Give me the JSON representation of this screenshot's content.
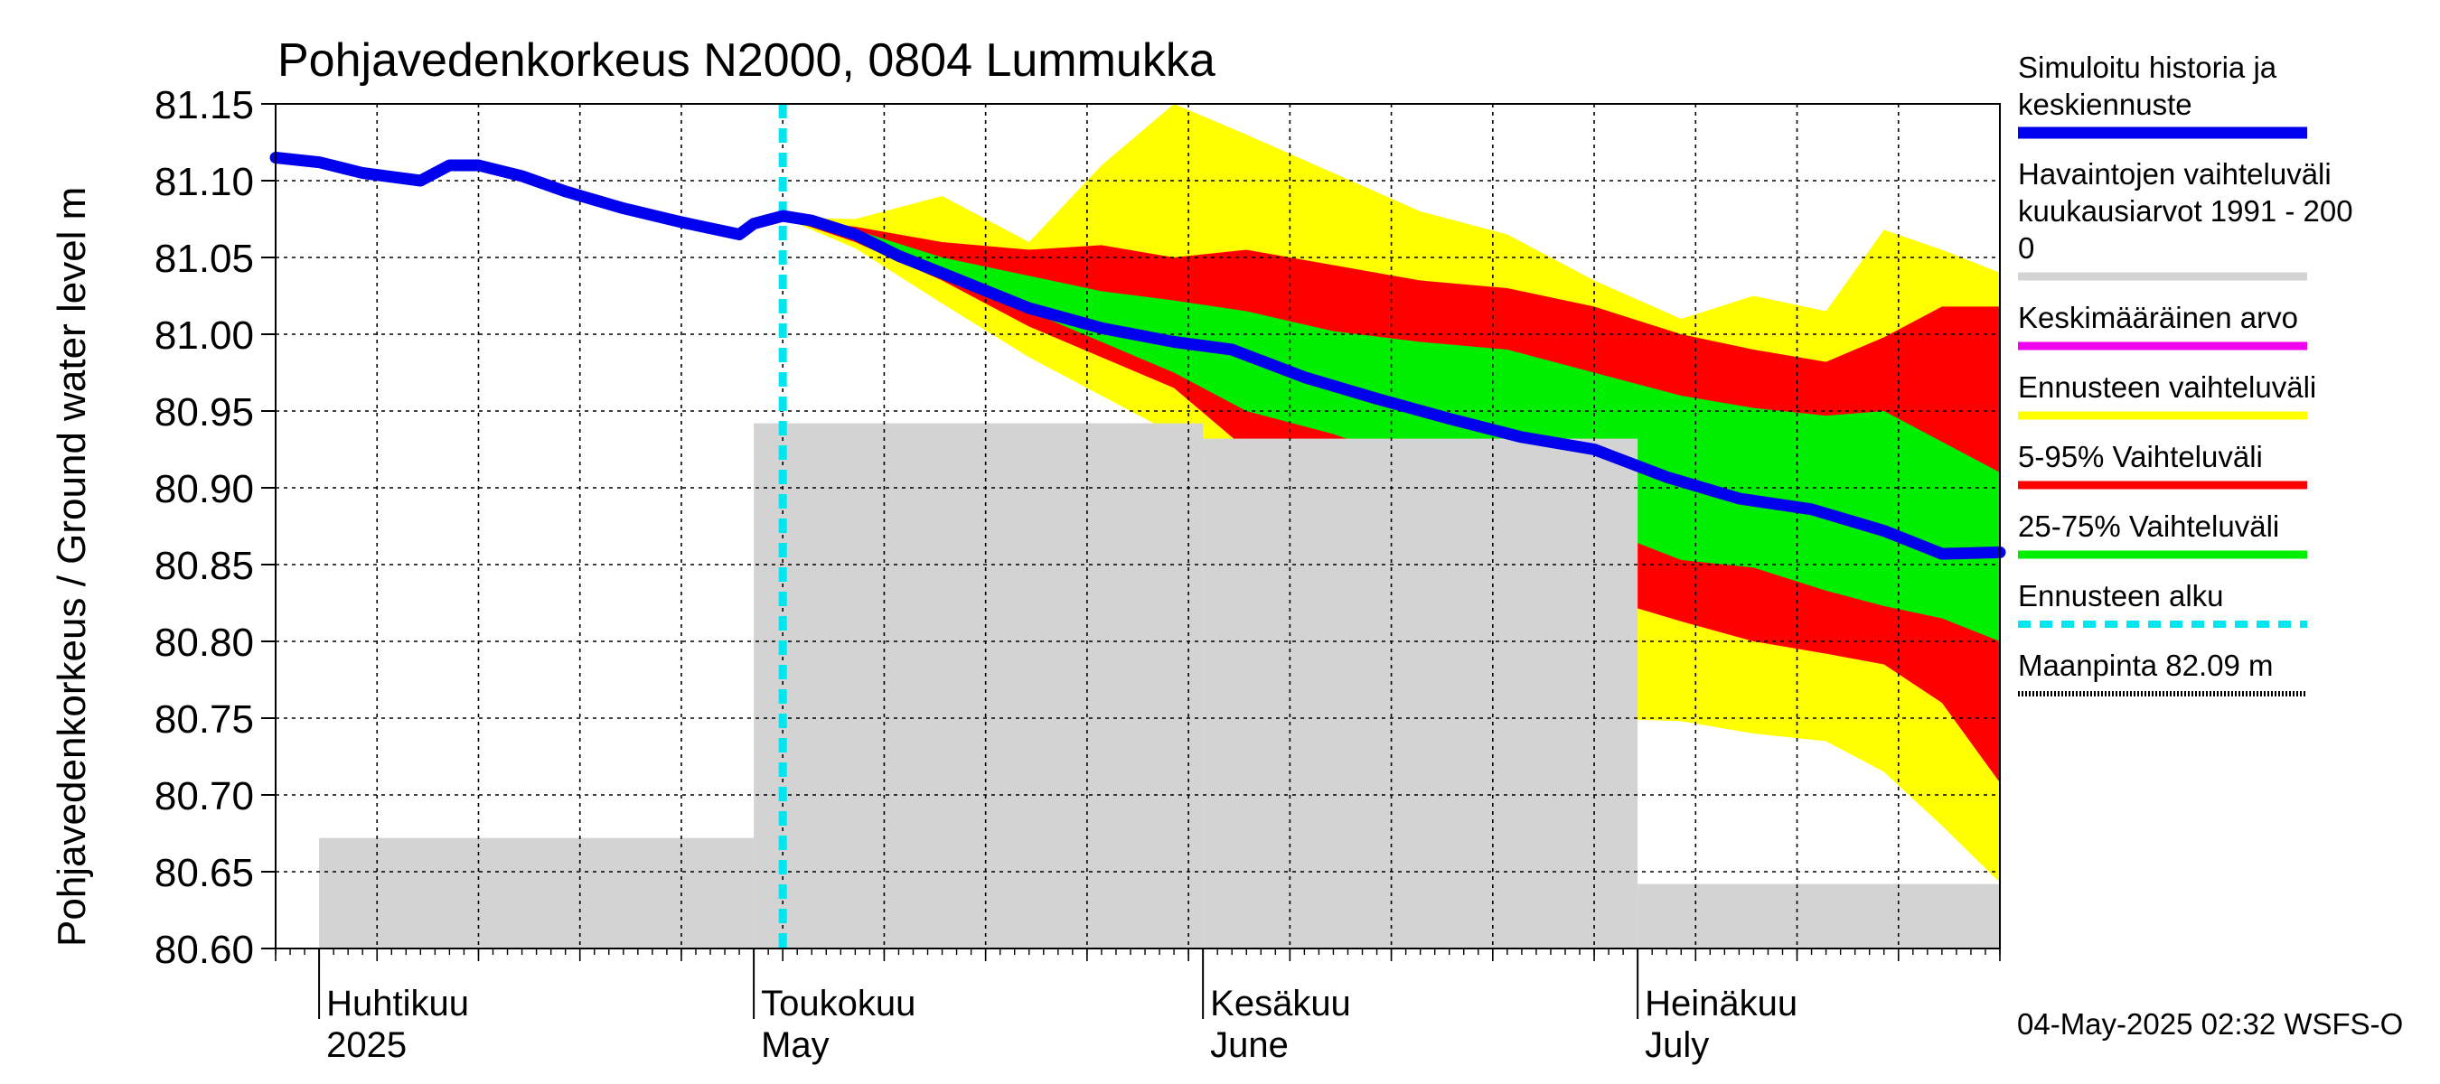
{
  "chart_data": {
    "type": "area",
    "title": "Pohjavedenkorkeus N2000, 0804 Lummukka",
    "ylabel": "Pohjavedenkorkeus / Ground water level   m",
    "ylim": [
      80.6,
      81.15
    ],
    "y_ticks": [
      "80.60",
      "80.65",
      "80.70",
      "80.75",
      "80.80",
      "80.85",
      "80.90",
      "80.95",
      "81.00",
      "81.05",
      "81.10",
      "81.15"
    ],
    "x_range": [
      "2025-03-29",
      "2025-07-26"
    ],
    "month_labels": [
      {
        "fi": "Huhtikuu",
        "en": "2025",
        "date": "2025-04-01"
      },
      {
        "fi": "Toukokuu",
        "en": "May",
        "date": "2025-05-01"
      },
      {
        "fi": "Kesäkuu",
        "en": "June",
        "date": "2025-06-01"
      },
      {
        "fi": "Heinäkuu",
        "en": "July",
        "date": "2025-07-01"
      }
    ],
    "forecast_start": "2025-05-03",
    "timestamp": "04-May-2025 02:32 WSFS-O",
    "legend": [
      {
        "label": "Simuloitu historia ja keskiennuste",
        "color": "#0000ee",
        "style": "thick"
      },
      {
        "label": "Havaintojen vaihteluväli kuukausiarvot 1991 - 2000",
        "color": "#d3d3d3",
        "style": "line"
      },
      {
        "label": "Keskimääräinen arvo",
        "color": "#ee00ee",
        "style": "line"
      },
      {
        "label": "Ennusteen vaihteluväli",
        "color": "#ffff00",
        "style": "line"
      },
      {
        "label": "5-95% Vaihteluväli",
        "color": "#ff0000",
        "style": "line"
      },
      {
        "label": "25-75% Vaihteluväli",
        "color": "#00ee00",
        "style": "line"
      },
      {
        "label": "Ennusteen alku",
        "color": "#00e5ee",
        "style": "dashed"
      },
      {
        "label": "Maanpinta 82.09 m",
        "color": "#000000",
        "style": "dotted"
      }
    ],
    "legend_display": [
      [
        "Simuloitu historia ja",
        "keskiennuste"
      ],
      [
        "Havaintojen vaihteluväli",
        " kuukausiarvot 1991 - 200",
        "0"
      ],
      [
        "Keskimääräinen arvo"
      ],
      [
        "Ennusteen vaihteluväli"
      ],
      [
        "5-95% Vaihteluväli"
      ],
      [
        "25-75% Vaihteluväli"
      ],
      [
        "Ennusteen alku"
      ],
      [
        "Maanpinta 82.09 m"
      ]
    ],
    "observed_range_monthly": [
      {
        "month": "2025-04",
        "min": 80.6,
        "max": 80.672
      },
      {
        "month": "2025-05",
        "min": 80.6,
        "max": 80.942
      },
      {
        "month": "2025-06",
        "min": 80.6,
        "max": 80.932
      },
      {
        "month": "2025-07",
        "min": 80.6,
        "max": 80.642
      }
    ],
    "series": [
      {
        "name": "Simuloitu historia ja keskiennuste",
        "x": [
          "2025-03-29",
          "2025-04-01",
          "2025-04-04",
          "2025-04-08",
          "2025-04-10",
          "2025-04-12",
          "2025-04-15",
          "2025-04-18",
          "2025-04-22",
          "2025-04-26",
          "2025-04-30",
          "2025-05-01",
          "2025-05-03",
          "2025-05-05",
          "2025-05-08",
          "2025-05-11",
          "2025-05-15",
          "2025-05-20",
          "2025-05-25",
          "2025-05-30",
          "2025-06-03",
          "2025-06-08",
          "2025-06-13",
          "2025-06-18",
          "2025-06-23",
          "2025-06-28",
          "2025-07-03",
          "2025-07-08",
          "2025-07-13",
          "2025-07-18",
          "2025-07-22",
          "2025-07-26"
        ],
        "values": [
          81.115,
          81.112,
          81.105,
          81.1,
          81.11,
          81.11,
          81.103,
          81.093,
          81.082,
          81.073,
          81.065,
          81.072,
          81.077,
          81.074,
          81.065,
          81.051,
          81.036,
          81.017,
          81.004,
          80.995,
          80.99,
          80.972,
          80.958,
          80.945,
          80.933,
          80.925,
          80.907,
          80.893,
          80.886,
          80.872,
          80.857,
          80.858
        ]
      },
      {
        "name": "Ennusteen vaihteluväli",
        "x": [
          "2025-05-03",
          "2025-05-08",
          "2025-05-14",
          "2025-05-20",
          "2025-05-25",
          "2025-05-30",
          "2025-06-04",
          "2025-06-10",
          "2025-06-16",
          "2025-06-22",
          "2025-06-28",
          "2025-07-04",
          "2025-07-09",
          "2025-07-14",
          "2025-07-18",
          "2025-07-22",
          "2025-07-26"
        ],
        "upper": [
          81.076,
          81.075,
          81.09,
          81.06,
          81.11,
          81.15,
          81.13,
          81.105,
          81.08,
          81.065,
          81.035,
          81.01,
          81.025,
          81.015,
          81.068,
          81.055,
          81.04
        ],
        "lower": [
          81.076,
          81.056,
          81.02,
          80.985,
          80.96,
          80.935,
          80.895,
          80.85,
          80.81,
          80.77,
          80.75,
          80.748,
          80.74,
          80.735,
          80.715,
          80.68,
          80.643
        ]
      },
      {
        "name": "5-95% Vaihteluväli",
        "x": [
          "2025-05-03",
          "2025-05-08",
          "2025-05-14",
          "2025-05-20",
          "2025-05-25",
          "2025-05-30",
          "2025-06-04",
          "2025-06-10",
          "2025-06-16",
          "2025-06-22",
          "2025-06-28",
          "2025-07-04",
          "2025-07-09",
          "2025-07-14",
          "2025-07-18",
          "2025-07-22",
          "2025-07-26"
        ],
        "upper": [
          81.076,
          81.07,
          81.06,
          81.055,
          81.058,
          81.05,
          81.055,
          81.045,
          81.035,
          81.03,
          81.018,
          81.0,
          80.99,
          80.982,
          80.998,
          81.018,
          81.018
        ],
        "lower": [
          81.076,
          81.06,
          81.035,
          81.005,
          80.985,
          80.965,
          80.925,
          80.895,
          80.87,
          80.855,
          80.83,
          80.813,
          80.8,
          80.792,
          80.785,
          80.76,
          80.708
        ]
      },
      {
        "name": "25-75% Vaihteluväli",
        "x": [
          "2025-05-03",
          "2025-05-08",
          "2025-05-14",
          "2025-05-20",
          "2025-05-25",
          "2025-05-30",
          "2025-06-04",
          "2025-06-10",
          "2025-06-16",
          "2025-06-22",
          "2025-06-28",
          "2025-07-04",
          "2025-07-09",
          "2025-07-14",
          "2025-07-18",
          "2025-07-22",
          "2025-07-26"
        ],
        "upper": [
          81.076,
          81.068,
          81.05,
          81.038,
          81.028,
          81.022,
          81.015,
          81.002,
          80.995,
          80.99,
          80.975,
          80.96,
          80.952,
          80.947,
          80.95,
          80.93,
          80.91
        ],
        "lower": [
          81.076,
          81.064,
          81.04,
          81.015,
          80.995,
          80.975,
          80.95,
          80.935,
          80.915,
          80.895,
          80.875,
          80.853,
          80.848,
          80.833,
          80.823,
          80.815,
          80.8
        ]
      }
    ]
  }
}
